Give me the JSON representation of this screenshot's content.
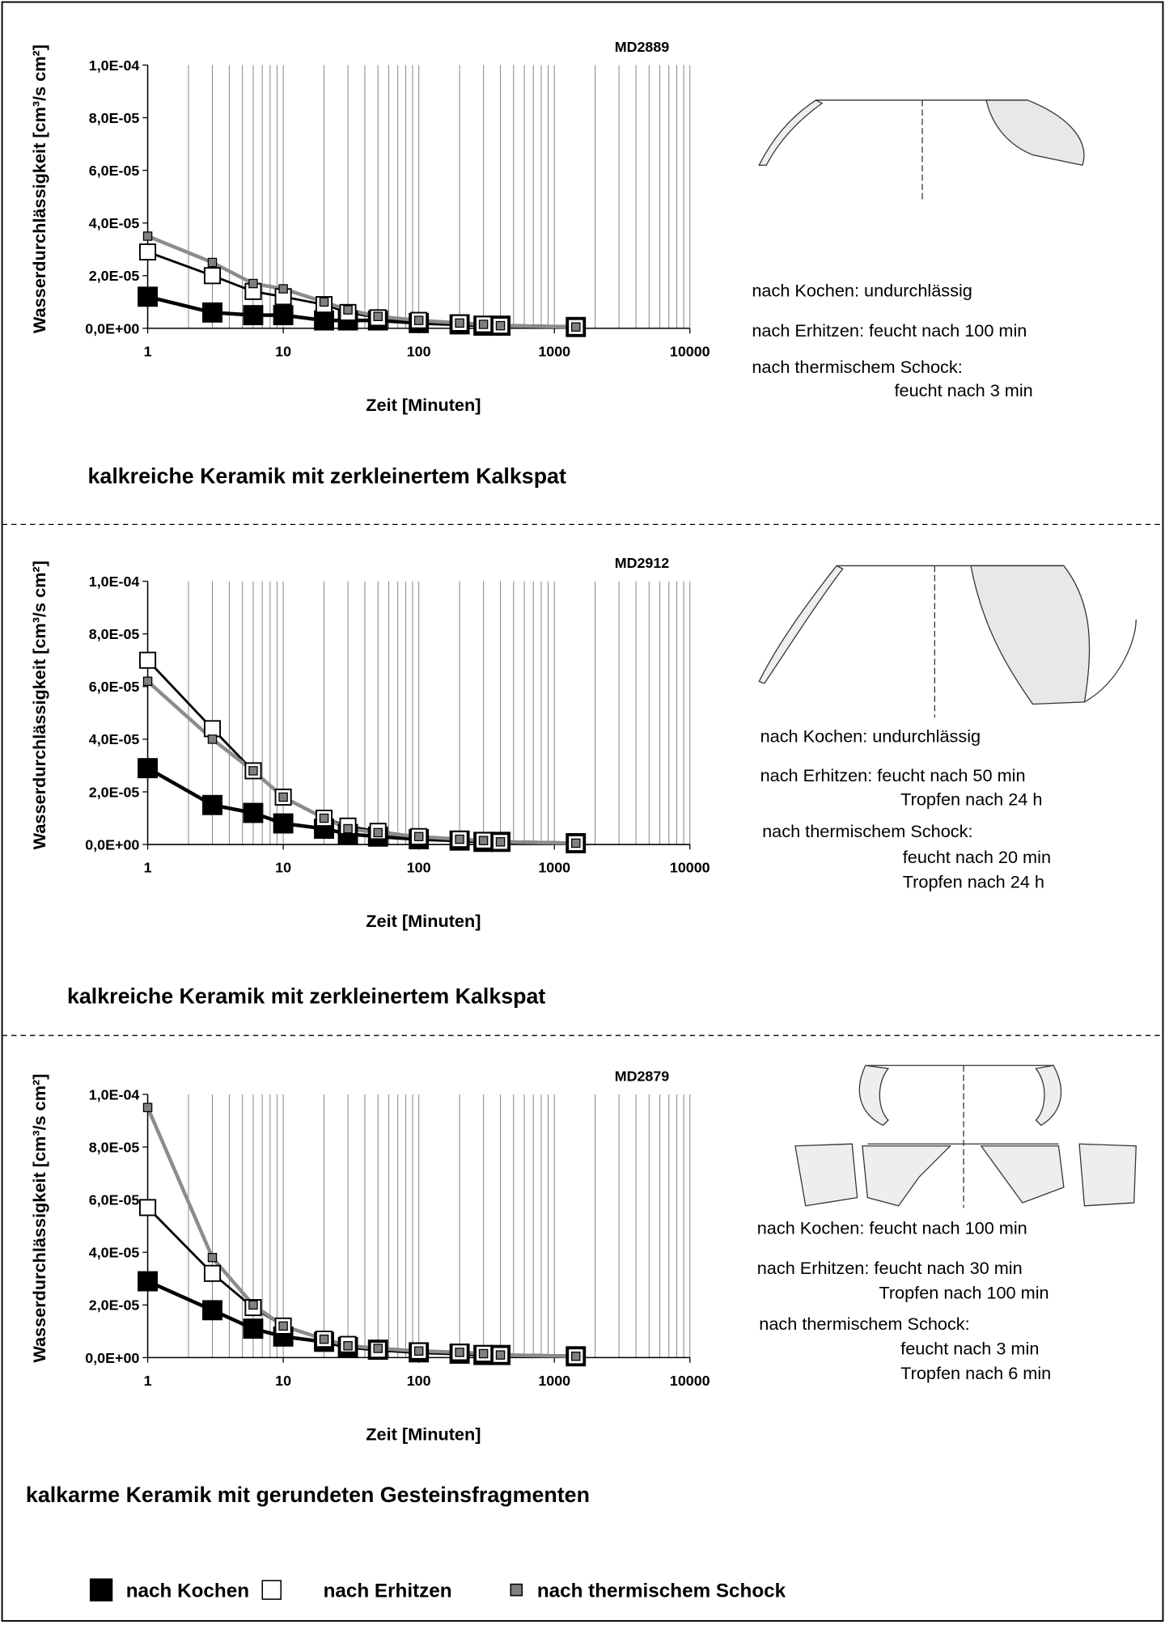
{
  "chart_data": [
    {
      "type": "line",
      "title": "MD2889",
      "ylabel": "Wasserdurchlässigkeit [cm³/s cm²]",
      "xlabel": "Zeit [Minuten]",
      "xlog": true,
      "x": [
        1,
        3,
        6,
        10,
        20,
        30,
        50,
        100,
        200,
        300,
        400,
        1440
      ],
      "xlim": [
        1,
        10000
      ],
      "xticks": [
        1,
        10,
        100,
        1000,
        10000
      ],
      "ylim": [
        0,
        0.0001
      ],
      "yticks": [
        {
          "value": 0,
          "label": "0,0E+00"
        },
        {
          "value": 2e-05,
          "label": "2,0E-05"
        },
        {
          "value": 4e-05,
          "label": "4,0E-05"
        },
        {
          "value": 6e-05,
          "label": "6,0E-05"
        },
        {
          "value": 8e-05,
          "label": "8,0E-05"
        },
        {
          "value": 0.0001,
          "label": "1,0E-04"
        }
      ],
      "grid": true,
      "series": [
        {
          "name": "nach Kochen",
          "color": "#000000",
          "line_color": "#000000",
          "values": [
            1.2e-05,
            6e-06,
            5e-06,
            5e-06,
            3e-06,
            3e-06,
            3e-06,
            2e-06,
            1.5e-06,
            1e-06,
            1e-06,
            5e-07
          ]
        },
        {
          "name": "nach Erhitzen",
          "color": "#ffffff",
          "line_color": "#000000",
          "values": [
            2.9e-05,
            2e-05,
            1.4e-05,
            1.2e-05,
            9e-06,
            6e-06,
            4e-06,
            3e-06,
            2e-06,
            1.5e-06,
            1e-06,
            5e-07
          ]
        },
        {
          "name": "nach thermischem Schock",
          "color": "#808080",
          "line_color": "#8c8c8c",
          "values": [
            3.5e-05,
            2.5e-05,
            1.7e-05,
            1.5e-05,
            1e-05,
            7e-06,
            4.5e-06,
            3e-06,
            2e-06,
            1.5e-06,
            1e-06,
            5e-07
          ]
        }
      ]
    },
    {
      "type": "line",
      "title": "MD2912",
      "ylabel": "Wasserdurchlässigkeit [cm³/s cm²]",
      "xlabel": "Zeit [Minuten]",
      "xlog": true,
      "x": [
        1,
        3,
        6,
        10,
        20,
        30,
        50,
        100,
        200,
        300,
        400,
        1440
      ],
      "xlim": [
        1,
        10000
      ],
      "xticks": [
        1,
        10,
        100,
        1000,
        10000
      ],
      "ylim": [
        0,
        0.0001
      ],
      "yticks": [
        {
          "value": 0,
          "label": "0,0E+00"
        },
        {
          "value": 2e-05,
          "label": "2,0E-05"
        },
        {
          "value": 4e-05,
          "label": "4,0E-05"
        },
        {
          "value": 6e-05,
          "label": "6,0E-05"
        },
        {
          "value": 8e-05,
          "label": "8,0E-05"
        },
        {
          "value": 0.0001,
          "label": "1,0E-04"
        }
      ],
      "grid": true,
      "series": [
        {
          "color": "#000000",
          "line_color": "#000000",
          "values": [
            2.9e-05,
            1.5e-05,
            1.2e-05,
            8e-06,
            6e-06,
            4e-06,
            3e-06,
            2e-06,
            1.5e-06,
            1e-06,
            1e-06,
            5e-07
          ]
        },
        {
          "color": "#ffffff",
          "line_color": "#000000",
          "values": [
            7e-05,
            4.4e-05,
            2.8e-05,
            1.8e-05,
            1e-05,
            7e-06,
            5e-06,
            3e-06,
            2e-06,
            1.5e-06,
            1e-06,
            5e-07
          ]
        },
        {
          "color": "#808080",
          "line_color": "#8c8c8c",
          "values": [
            6.2e-05,
            4e-05,
            2.8e-05,
            1.8e-05,
            1e-05,
            6e-06,
            4.5e-06,
            3e-06,
            2e-06,
            1.5e-06,
            1e-06,
            5e-07
          ]
        }
      ]
    },
    {
      "type": "line",
      "title": "MD2879",
      "ylabel": "Wasserdurchlässigkeit [cm³/s cm²]",
      "xlabel": "Zeit [Minuten]",
      "xlog": true,
      "x": [
        1,
        3,
        6,
        10,
        20,
        30,
        50,
        100,
        200,
        300,
        400,
        1440
      ],
      "xlim": [
        1,
        10000
      ],
      "xticks": [
        1,
        10,
        100,
        1000,
        10000
      ],
      "ylim": [
        0,
        0.0001
      ],
      "yticks": [
        {
          "value": 0,
          "label": "0,0E+00"
        },
        {
          "value": 2e-05,
          "label": "2,0E-05"
        },
        {
          "value": 4e-05,
          "label": "4,0E-05"
        },
        {
          "value": 6e-05,
          "label": "6,0E-05"
        },
        {
          "value": 8e-05,
          "label": "8,0E-05"
        },
        {
          "value": 0.0001,
          "label": "1,0E-04"
        }
      ],
      "grid": true,
      "series": [
        {
          "color": "#000000",
          "line_color": "#000000",
          "values": [
            2.9e-05,
            1.8e-05,
            1.1e-05,
            8e-06,
            6e-06,
            4e-06,
            3e-06,
            2e-06,
            1.5e-06,
            1e-06,
            1e-06,
            5e-07
          ]
        },
        {
          "color": "#ffffff",
          "line_color": "#000000",
          "values": [
            5.7e-05,
            3.2e-05,
            1.9e-05,
            1.2e-05,
            7e-06,
            5e-06,
            3e-06,
            2.5e-06,
            2e-06,
            1.5e-06,
            1e-06,
            5e-07
          ]
        },
        {
          "color": "#808080",
          "line_color": "#8c8c8c",
          "values": [
            9.5e-05,
            3.8e-05,
            2e-05,
            1.2e-05,
            7e-06,
            4.5e-06,
            3.5e-06,
            2.5e-06,
            2e-06,
            1.5e-06,
            1e-06,
            5e-07
          ]
        }
      ]
    }
  ],
  "panels": [
    {
      "caption": "kalkreiche Keramik mit zerkleinertem Kalkspat",
      "notes": [
        "nach Kochen: undurchlässig",
        "nach Erhitzen: feucht nach 100 min",
        "nach thermischem Schock:",
        "feucht nach 3 min"
      ]
    },
    {
      "caption": "kalkreiche Keramik mit zerkleinertem Kalkspat",
      "notes": [
        "nach Kochen: undurchlässig",
        "nach Erhitzen: feucht nach 50 min",
        "Tropfen nach 24 h",
        "nach thermischem Schock:",
        "feucht nach 20 min",
        "Tropfen nach 24 h"
      ]
    },
    {
      "caption": "kalkarme Keramik mit gerundeten Gesteinsfragmenten",
      "notes": [
        "nach Kochen: feucht nach 100 min",
        "nach Erhitzen: feucht nach 30 min",
        "Tropfen nach 100 min",
        "nach thermischem Schock:",
        "feucht nach 3 min",
        "Tropfen nach 6 min"
      ]
    }
  ]
}
